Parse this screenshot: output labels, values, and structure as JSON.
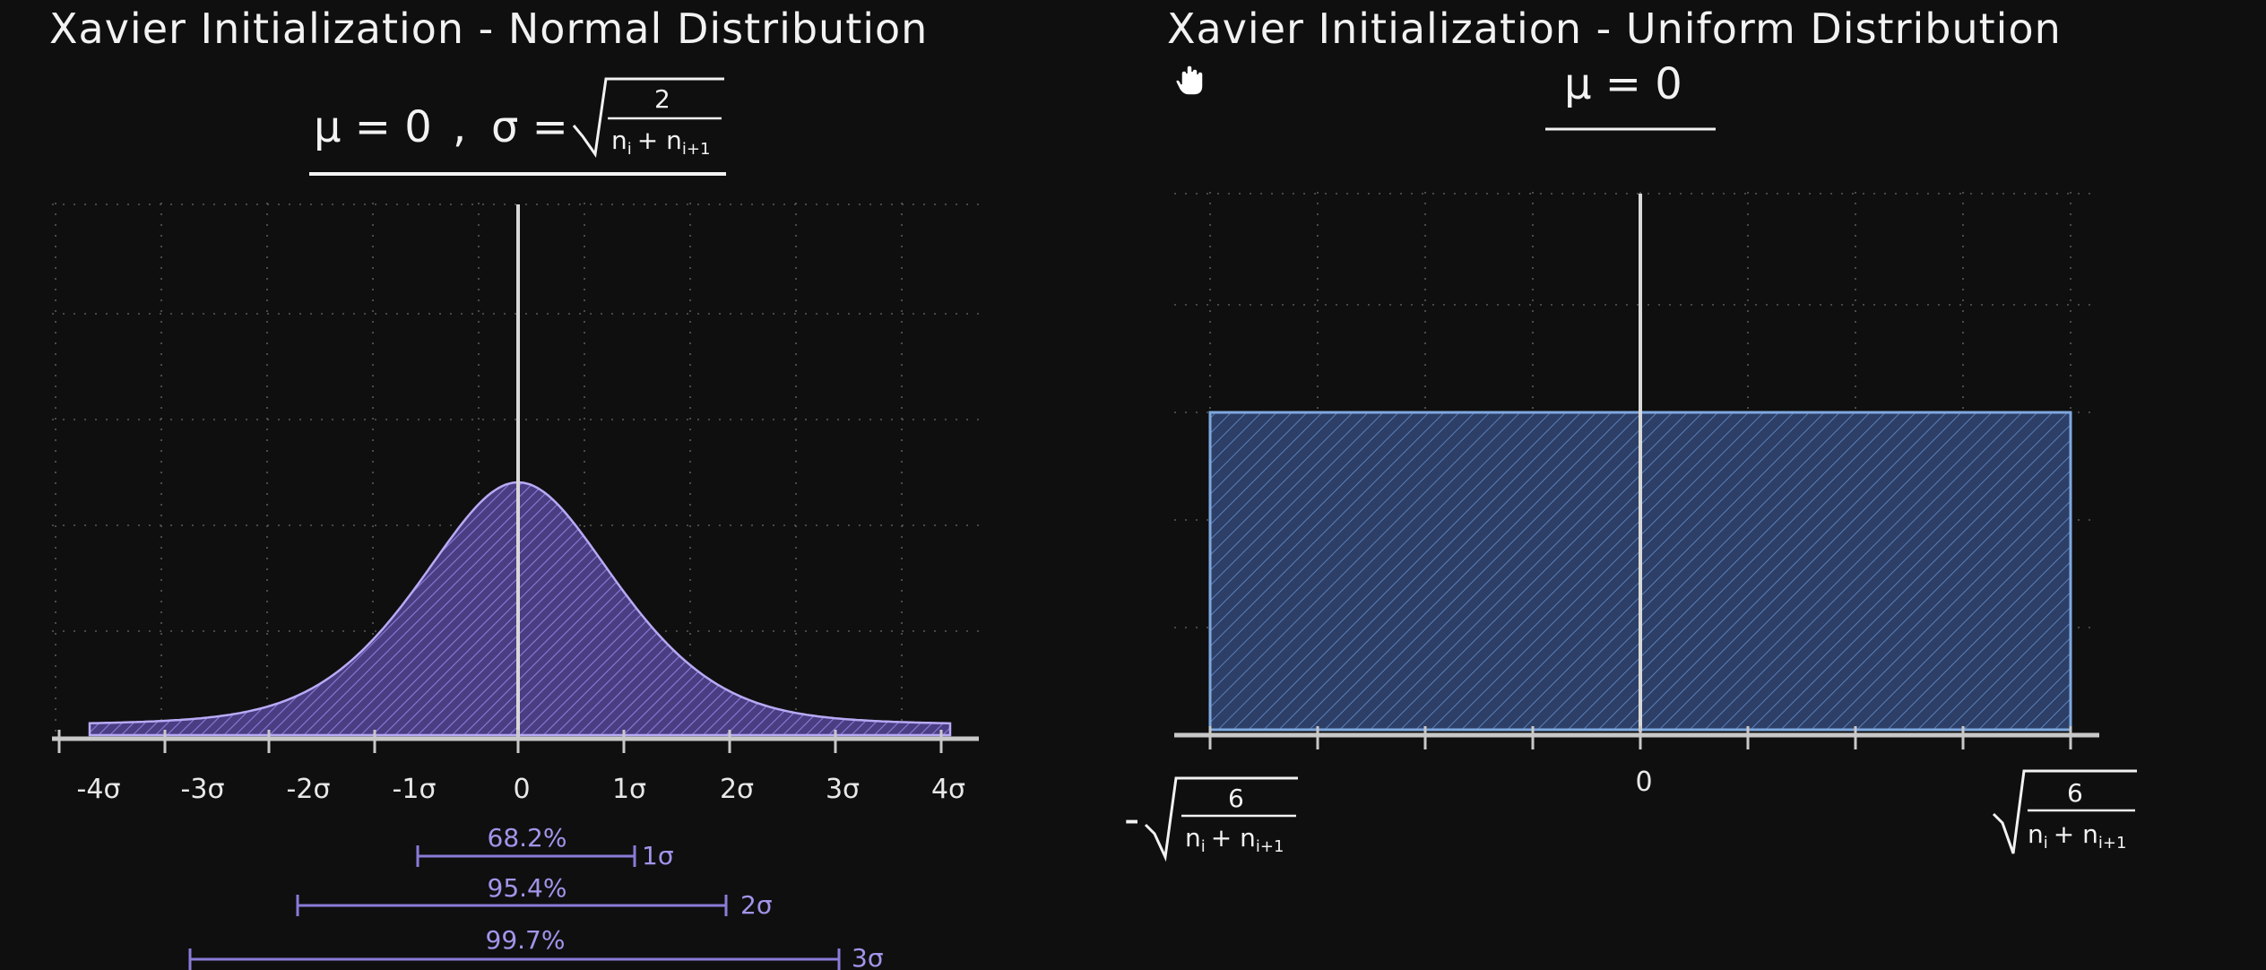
{
  "left": {
    "title": "Xavier Initialization - Normal Distribution",
    "mean_label": "μ = 0",
    "comma": ",",
    "sigma_label": "σ =",
    "sigma_num": "2",
    "sigma_den": "n",
    "sigma_den_sub_i": "i",
    "sigma_den_plus": "+ n",
    "sigma_den_sub_i1": "i+1",
    "ticks": [
      "-4σ",
      "-3σ",
      "-2σ",
      "-1σ",
      "0",
      "1σ",
      "2σ",
      "3σ",
      "4σ"
    ],
    "ranges": [
      {
        "pct": "68.2%",
        "sig": "1σ"
      },
      {
        "pct": "95.4%",
        "sig": "2σ"
      },
      {
        "pct": "99.7%",
        "sig": "3σ"
      }
    ],
    "fill_color": "#5b4b9c",
    "stroke_color": "#b9aaf5"
  },
  "right": {
    "title": "Xavier Initialization - Uniform Distribution",
    "mean_label": "μ = 0",
    "center_tick": "0",
    "left_bound_minus": "-",
    "bound_num": "6",
    "bound_den": "n",
    "bound_den_sub_i": "i",
    "bound_den_plus": "+ n",
    "bound_den_sub_i1": "i+1",
    "fill_color": "#354a7a",
    "stroke_color": "#7fa8e0"
  }
}
